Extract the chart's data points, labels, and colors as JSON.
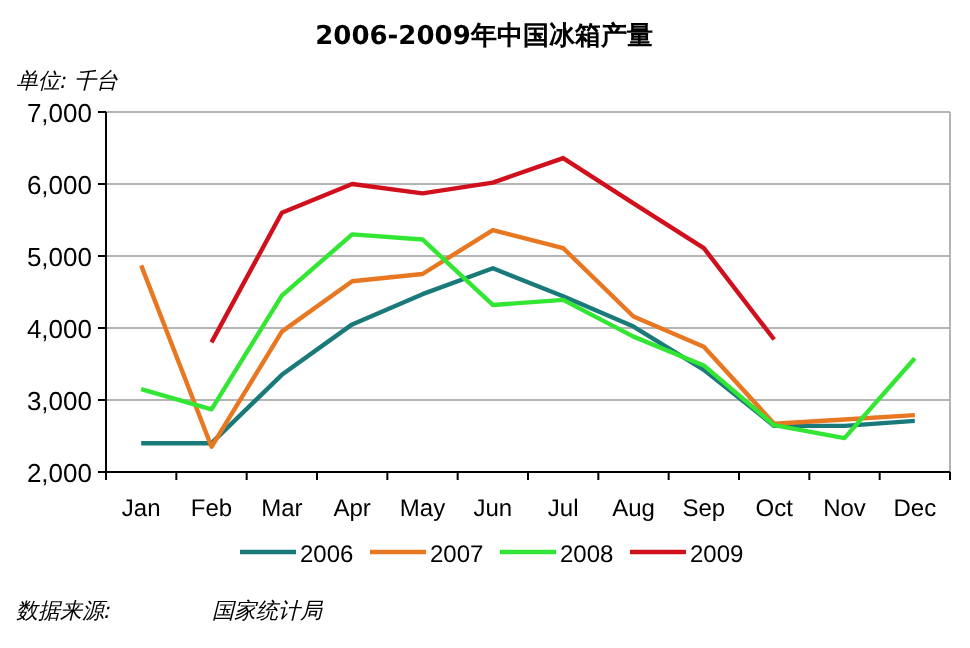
{
  "chart_data": {
    "type": "line",
    "title": "2006-2009年中国冰箱产量",
    "subtitle": "单位: 千台",
    "categories": [
      "Jan",
      "Feb",
      "Mar",
      "Apr",
      "May",
      "Jun",
      "Jul",
      "Aug",
      "Sep",
      "Oct",
      "Nov",
      "Dec"
    ],
    "series": [
      {
        "name": "2006",
        "color": "#1a7a7a",
        "values": [
          2400,
          2400,
          3350,
          4050,
          4470,
          4830,
          4440,
          4020,
          3420,
          2640,
          2640,
          2710
        ]
      },
      {
        "name": "2007",
        "color": "#e87722",
        "values": [
          4870,
          2350,
          3950,
          4650,
          4750,
          5360,
          5110,
          4160,
          3740,
          2670,
          2730,
          2790
        ]
      },
      {
        "name": "2008",
        "color": "#33e633",
        "values": [
          3150,
          2870,
          4450,
          5300,
          5230,
          4320,
          4390,
          3880,
          3480,
          2650,
          2470,
          3580
        ]
      },
      {
        "name": "2009",
        "color": "#d0101c",
        "values": [
          null,
          3800,
          5600,
          6000,
          5870,
          6020,
          6360,
          5730,
          5110,
          3840,
          null,
          null
        ]
      }
    ],
    "ylim": [
      2000,
      7000
    ],
    "yticks": [
      {
        "value": 2000,
        "label": "2,000"
      },
      {
        "value": 3000,
        "label": "3,000"
      },
      {
        "value": 4000,
        "label": "4,000"
      },
      {
        "value": 5000,
        "label": "5,000"
      },
      {
        "value": 6000,
        "label": "6,000"
      },
      {
        "value": 7000,
        "label": "7,000"
      }
    ],
    "grid": "y",
    "legend": "bottom",
    "marker": "none",
    "line_style": "solid",
    "annotations": [
      "数据来源:",
      "国家统计局"
    ]
  }
}
